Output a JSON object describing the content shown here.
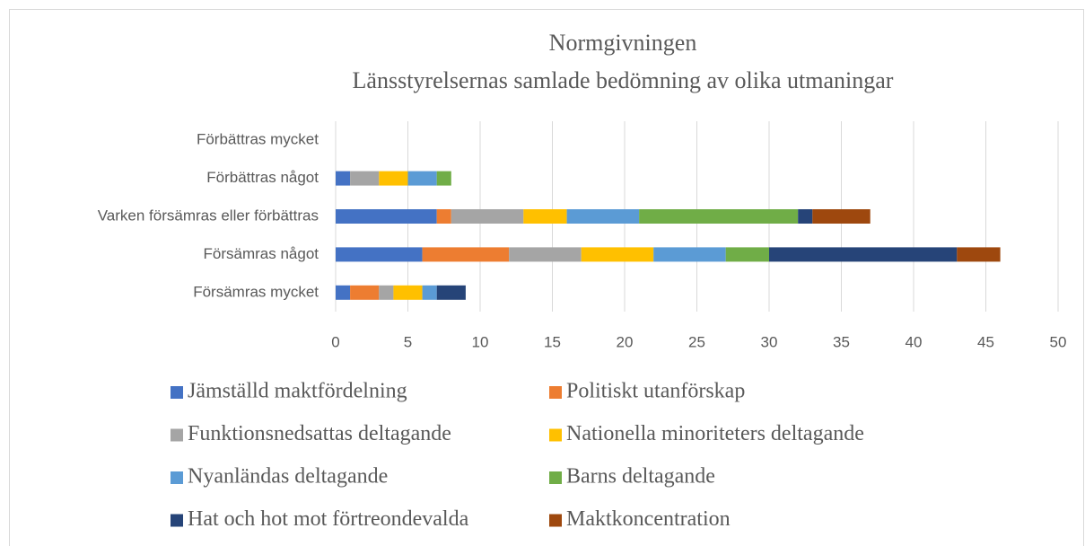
{
  "chart_data": {
    "type": "stacked_bar_horizontal",
    "title": "Normgivningen",
    "subtitle": "Länsstyrelsernas samlade bedömning av olika utmaningar",
    "categories": [
      "Förbättras mycket",
      "Förbättras något",
      "Varken försämras eller förbättras",
      "Försämras något",
      "Försämras mycket"
    ],
    "series": [
      {
        "name": "Jämställd maktfördelning",
        "color": "#4472c4",
        "values": [
          0,
          1,
          7,
          6,
          1
        ]
      },
      {
        "name": "Politiskt utanförskap",
        "color": "#ed7d31",
        "values": [
          0,
          0,
          1,
          6,
          2
        ]
      },
      {
        "name": "Funktionsnedsattas deltagande",
        "color": "#a5a5a5",
        "values": [
          0,
          2,
          5,
          5,
          1
        ]
      },
      {
        "name": "Nationella minoriteters deltagande",
        "color": "#ffc000",
        "values": [
          0,
          2,
          3,
          5,
          2
        ]
      },
      {
        "name": "Nyanländas deltagande",
        "color": "#5b9bd5",
        "values": [
          0,
          2,
          5,
          5,
          1
        ]
      },
      {
        "name": "Barns deltagande",
        "color": "#70ad47",
        "values": [
          0,
          1,
          11,
          3,
          0
        ]
      },
      {
        "name": "Hat och hot mot förtreondevalda",
        "color": "#264478",
        "values": [
          0,
          0,
          1,
          13,
          2
        ]
      },
      {
        "name": "Maktkoncentration",
        "color": "#9e480e",
        "values": [
          0,
          0,
          4,
          3,
          0
        ]
      }
    ],
    "xlim": [
      0,
      50
    ],
    "xticks": [
      0,
      5,
      10,
      15,
      20,
      25,
      30,
      35,
      40,
      45,
      50
    ],
    "grid": true
  }
}
